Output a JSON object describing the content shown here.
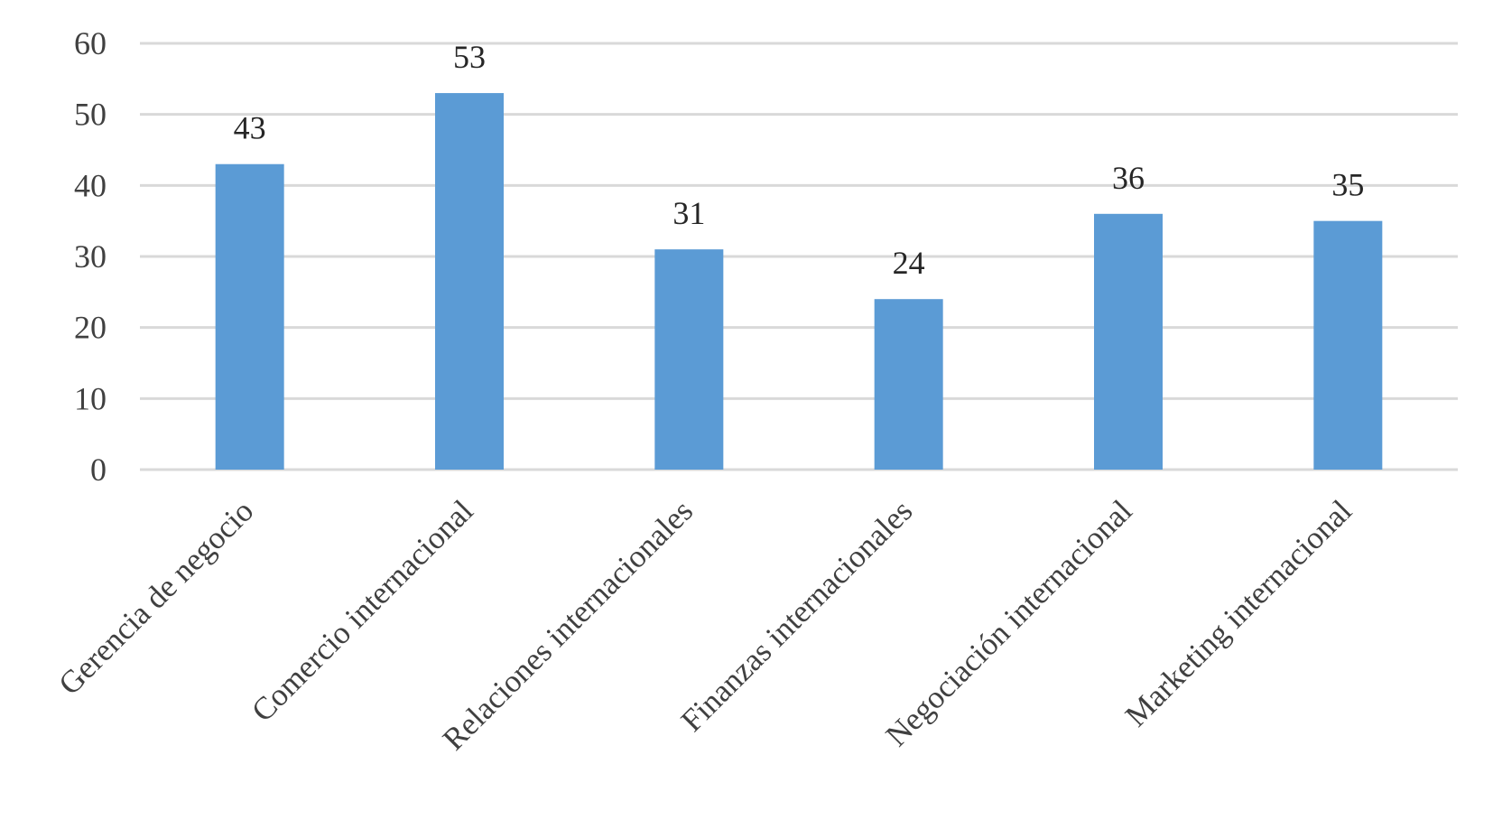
{
  "chart_data": {
    "type": "bar",
    "title": "",
    "xlabel": "",
    "ylabel": "",
    "categories": [
      "Gerencia de negocio",
      "Comercio internacional",
      "Relaciones internacionales",
      "Finanzas internacionales",
      "Negociación internacional",
      "Marketing internacional"
    ],
    "values": [
      43,
      53,
      31,
      24,
      36,
      35
    ],
    "ylim": [
      0,
      60
    ],
    "yticks": [
      0,
      10,
      20,
      30,
      40,
      50,
      60
    ],
    "grid": true,
    "legend": "none",
    "data_labels": true,
    "colors": {
      "bar": "#5B9BD5",
      "grid": "#D9D9D9",
      "text": "#404040"
    }
  }
}
